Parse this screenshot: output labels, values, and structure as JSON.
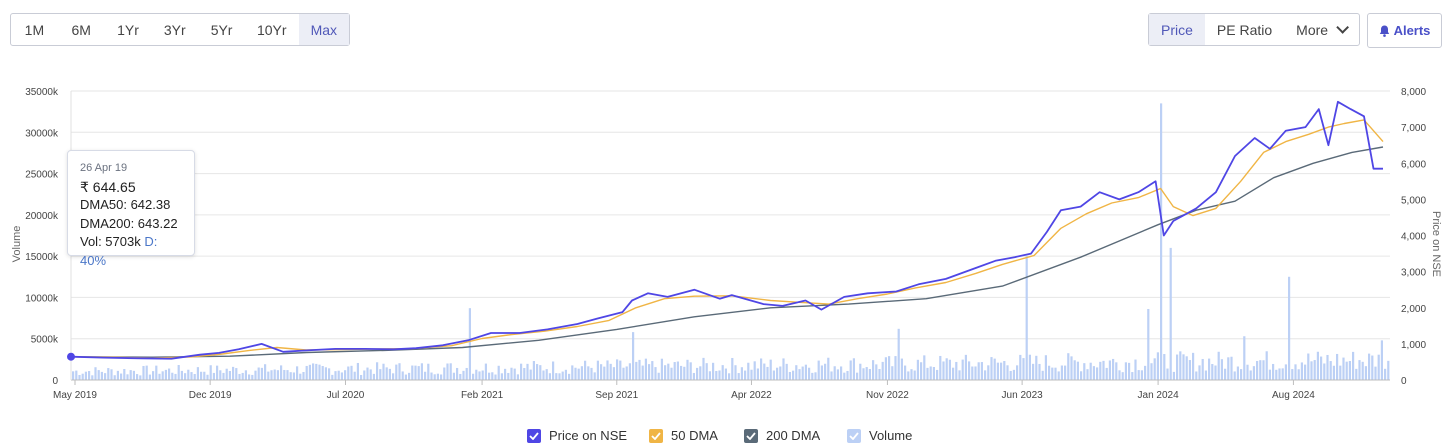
{
  "toolbar": {
    "ranges": [
      "1M",
      "6M",
      "1Yr",
      "3Yr",
      "5Yr",
      "10Yr",
      "Max"
    ],
    "active_range": "Max",
    "metrics": [
      "Price",
      "PE Ratio",
      "More"
    ],
    "active_metric": "Price",
    "alerts_label": "Alerts"
  },
  "tooltip": {
    "date": "26 Apr 19",
    "price": "₹ 644.65",
    "dma50": "DMA50: 642.38",
    "dma200": "DMA200: 643.22",
    "vol": "Vol: 5703k",
    "delivery": "D: 40%"
  },
  "legend": [
    {
      "label": "Price on NSE",
      "color": "#4f46e5"
    },
    {
      "label": "50 DMA",
      "color": "#f0b545"
    },
    {
      "label": "200 DMA",
      "color": "#5a6a78"
    },
    {
      "label": "Volume",
      "color": "#bcd0f5"
    }
  ],
  "chart_data": {
    "type": "line",
    "x_ticks": [
      "May 2019",
      "Dec 2019",
      "Jul 2020",
      "Feb 2021",
      "Sep 2021",
      "Apr 2022",
      "Nov 2022",
      "Jun 2023",
      "Jan 2024",
      "Aug 2024"
    ],
    "x_range": [
      "2019-04-26",
      "2024-12-31"
    ],
    "y_left_label": "Volume",
    "y_left_ticks": [
      "0",
      "5000k",
      "10000k",
      "15000k",
      "20000k",
      "25000k",
      "30000k",
      "35000k"
    ],
    "y_left_range": [
      0,
      35000
    ],
    "y_right_label": "Price on NSE",
    "y_right_ticks": [
      "0",
      "1,000",
      "2,000",
      "3,000",
      "4,000",
      "5,000",
      "6,000",
      "7,000",
      "8,000"
    ],
    "y_right_range": [
      0,
      8000
    ],
    "grid": true,
    "series": [
      {
        "name": "Price on NSE",
        "axis": "right",
        "color": "#4f46e5",
        "points": [
          [
            "2019-04-26",
            645
          ],
          [
            "2019-06-15",
            620
          ],
          [
            "2019-08-15",
            600
          ],
          [
            "2019-10-01",
            590
          ],
          [
            "2019-11-15",
            700
          ],
          [
            "2019-12-15",
            750
          ],
          [
            "2020-01-15",
            850
          ],
          [
            "2020-02-20",
            1000
          ],
          [
            "2020-03-25",
            780
          ],
          [
            "2020-05-01",
            820
          ],
          [
            "2020-06-15",
            860
          ],
          [
            "2020-08-01",
            860
          ],
          [
            "2020-09-15",
            850
          ],
          [
            "2020-10-20",
            880
          ],
          [
            "2020-12-01",
            960
          ],
          [
            "2021-01-10",
            1100
          ],
          [
            "2021-02-15",
            1300
          ],
          [
            "2021-04-01",
            1300
          ],
          [
            "2021-05-15",
            1400
          ],
          [
            "2021-07-01",
            1550
          ],
          [
            "2021-08-01",
            1700
          ],
          [
            "2021-09-10",
            1880
          ],
          [
            "2021-09-25",
            2200
          ],
          [
            "2021-10-20",
            2400
          ],
          [
            "2021-11-20",
            2300
          ],
          [
            "2022-01-01",
            2500
          ],
          [
            "2022-02-10",
            2250
          ],
          [
            "2022-03-01",
            2350
          ],
          [
            "2022-04-20",
            2100
          ],
          [
            "2022-05-20",
            2050
          ],
          [
            "2022-06-25",
            2200
          ],
          [
            "2022-07-20",
            1950
          ],
          [
            "2022-08-25",
            2300
          ],
          [
            "2022-10-01",
            2400
          ],
          [
            "2022-11-15",
            2450
          ],
          [
            "2022-12-20",
            2650
          ],
          [
            "2023-02-01",
            2800
          ],
          [
            "2023-03-20",
            3100
          ],
          [
            "2023-04-20",
            3300
          ],
          [
            "2023-05-20",
            3400
          ],
          [
            "2023-06-15",
            3500
          ],
          [
            "2023-07-10",
            4100
          ],
          [
            "2023-08-01",
            4700
          ],
          [
            "2023-09-01",
            4800
          ],
          [
            "2023-10-01",
            5200
          ],
          [
            "2023-11-01",
            5000
          ],
          [
            "2023-12-01",
            5200
          ],
          [
            "2023-12-28",
            5500
          ],
          [
            "2024-01-10",
            4000
          ],
          [
            "2024-01-25",
            4400
          ],
          [
            "2024-03-01",
            4750
          ],
          [
            "2024-04-01",
            5200
          ],
          [
            "2024-05-01",
            6200
          ],
          [
            "2024-06-01",
            6700
          ],
          [
            "2024-06-25",
            6400
          ],
          [
            "2024-07-20",
            6900
          ],
          [
            "2024-08-20",
            7000
          ],
          [
            "2024-09-10",
            7500
          ],
          [
            "2024-09-25",
            6500
          ],
          [
            "2024-10-10",
            7700
          ],
          [
            "2024-10-30",
            7500
          ],
          [
            "2024-11-20",
            7300
          ],
          [
            "2024-12-05",
            5850
          ],
          [
            "2024-12-20",
            5850
          ]
        ]
      },
      {
        "name": "50 DMA",
        "axis": "right",
        "color": "#f0b545",
        "points": [
          [
            "2019-04-26",
            642
          ],
          [
            "2019-07-01",
            630
          ],
          [
            "2019-09-01",
            605
          ],
          [
            "2019-11-01",
            640
          ],
          [
            "2019-12-20",
            720
          ],
          [
            "2020-02-01",
            820
          ],
          [
            "2020-03-15",
            900
          ],
          [
            "2020-04-30",
            830
          ],
          [
            "2020-06-15",
            840
          ],
          [
            "2020-08-15",
            855
          ],
          [
            "2020-10-15",
            870
          ],
          [
            "2020-12-15",
            950
          ],
          [
            "2021-02-01",
            1150
          ],
          [
            "2021-03-20",
            1260
          ],
          [
            "2021-05-10",
            1350
          ],
          [
            "2021-07-01",
            1480
          ],
          [
            "2021-08-20",
            1650
          ],
          [
            "2021-10-01",
            2000
          ],
          [
            "2021-11-15",
            2250
          ],
          [
            "2022-01-01",
            2320
          ],
          [
            "2022-03-01",
            2330
          ],
          [
            "2022-05-01",
            2200
          ],
          [
            "2022-06-15",
            2150
          ],
          [
            "2022-08-01",
            2100
          ],
          [
            "2022-09-15",
            2250
          ],
          [
            "2022-11-01",
            2380
          ],
          [
            "2022-12-15",
            2550
          ],
          [
            "2023-02-01",
            2700
          ],
          [
            "2023-03-20",
            2950
          ],
          [
            "2023-05-01",
            3200
          ],
          [
            "2023-06-20",
            3450
          ],
          [
            "2023-08-01",
            4200
          ],
          [
            "2023-09-10",
            4600
          ],
          [
            "2023-10-20",
            4900
          ],
          [
            "2023-12-01",
            5050
          ],
          [
            "2024-01-05",
            5300
          ],
          [
            "2024-01-25",
            4800
          ],
          [
            "2024-02-25",
            4550
          ],
          [
            "2024-04-01",
            4750
          ],
          [
            "2024-05-10",
            5500
          ],
          [
            "2024-06-15",
            6300
          ],
          [
            "2024-07-20",
            6600
          ],
          [
            "2024-08-25",
            6800
          ],
          [
            "2024-09-25",
            7000
          ],
          [
            "2024-10-20",
            7100
          ],
          [
            "2024-11-20",
            7200
          ],
          [
            "2024-12-20",
            6600
          ]
        ]
      },
      {
        "name": "200 DMA",
        "axis": "right",
        "color": "#5a6a78",
        "points": [
          [
            "2019-04-26",
            643
          ],
          [
            "2019-09-01",
            630
          ],
          [
            "2020-01-01",
            660
          ],
          [
            "2020-05-01",
            760
          ],
          [
            "2020-09-01",
            820
          ],
          [
            "2021-01-01",
            900
          ],
          [
            "2021-05-01",
            1100
          ],
          [
            "2021-09-01",
            1400
          ],
          [
            "2022-01-01",
            1750
          ],
          [
            "2022-05-01",
            2000
          ],
          [
            "2022-09-01",
            2100
          ],
          [
            "2023-01-01",
            2250
          ],
          [
            "2023-05-01",
            2600
          ],
          [
            "2023-09-01",
            3400
          ],
          [
            "2024-01-01",
            4300
          ],
          [
            "2024-03-01",
            4700
          ],
          [
            "2024-05-01",
            4950
          ],
          [
            "2024-07-01",
            5600
          ],
          [
            "2024-09-01",
            6000
          ],
          [
            "2024-11-01",
            6300
          ],
          [
            "2024-12-20",
            6450
          ]
        ]
      },
      {
        "name": "Volume",
        "axis": "left",
        "type": "bar",
        "color": "#bcd0f5",
        "unit": "k",
        "spikes": [
          [
            "2019-04-26",
            5703
          ],
          [
            "2021-01-15",
            8700
          ],
          [
            "2021-09-25",
            5800
          ],
          [
            "2022-11-20",
            6200
          ],
          [
            "2023-06-10",
            15000
          ],
          [
            "2023-12-15",
            8600
          ],
          [
            "2024-01-08",
            33500
          ],
          [
            "2024-01-22",
            16000
          ],
          [
            "2024-05-15",
            5300
          ],
          [
            "2024-07-25",
            12500
          ],
          [
            "2024-12-20",
            4800
          ]
        ],
        "typical_range": [
          600,
          3500
        ]
      }
    ]
  }
}
